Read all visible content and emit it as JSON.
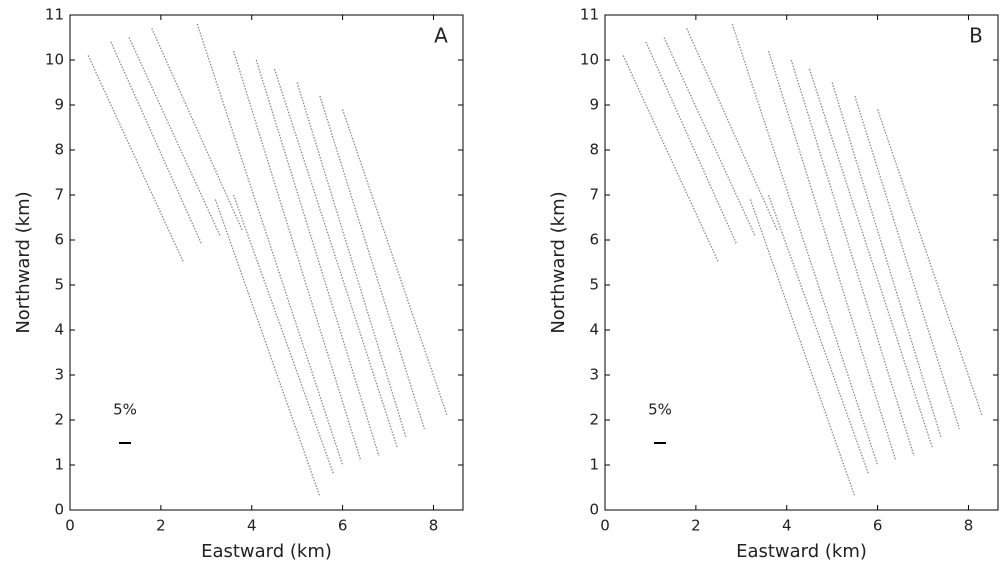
{
  "chart_data": [
    {
      "type": "line",
      "title": "A",
      "xlabel": "Eastward (km)",
      "ylabel": "Northward (km)",
      "annotation": "5%",
      "xlim": [
        0,
        8.65
      ],
      "ylim": [
        0,
        11
      ],
      "xticks": [
        0,
        2,
        4,
        6,
        8
      ],
      "yticks": [
        0,
        1,
        2,
        3,
        4,
        5,
        6,
        7,
        8,
        9,
        10,
        11
      ],
      "color": "#8a8a8a",
      "series": [
        {
          "x": [
            0.4,
            2.5
          ],
          "values": [
            10.1,
            5.5
          ]
        },
        {
          "x": [
            0.9,
            2.9
          ],
          "values": [
            10.4,
            5.9
          ]
        },
        {
          "x": [
            1.3,
            3.3
          ],
          "values": [
            10.5,
            6.1
          ]
        },
        {
          "x": [
            1.8,
            3.8
          ],
          "values": [
            10.7,
            6.2
          ]
        },
        {
          "x": [
            3.2,
            5.5
          ],
          "values": [
            6.9,
            0.3
          ]
        },
        {
          "x": [
            3.6,
            5.8
          ],
          "values": [
            7.0,
            0.8
          ]
        },
        {
          "x": [
            2.8,
            6.0
          ],
          "values": [
            10.8,
            1.0
          ]
        },
        {
          "x": [
            3.6,
            6.4
          ],
          "values": [
            10.2,
            1.1
          ]
        },
        {
          "x": [
            4.1,
            6.8
          ],
          "values": [
            10.0,
            1.2
          ]
        },
        {
          "x": [
            4.5,
            7.2
          ],
          "values": [
            9.8,
            1.4
          ]
        },
        {
          "x": [
            5.0,
            7.4
          ],
          "values": [
            9.5,
            1.6
          ]
        },
        {
          "x": [
            5.5,
            7.8
          ],
          "values": [
            9.2,
            1.8
          ]
        },
        {
          "x": [
            6.0,
            8.3
          ],
          "values": [
            8.9,
            2.1
          ]
        }
      ]
    },
    {
      "type": "line",
      "title": "B",
      "xlabel": "Eastward (km)",
      "ylabel": "Northward (km)",
      "annotation": "5%",
      "xlim": [
        0,
        8.65
      ],
      "ylim": [
        0,
        11
      ],
      "xticks": [
        0,
        2,
        4,
        6,
        8
      ],
      "yticks": [
        0,
        1,
        2,
        3,
        4,
        5,
        6,
        7,
        8,
        9,
        10,
        11
      ],
      "color": "#8a8a8a",
      "series": [
        {
          "x": [
            0.4,
            2.5
          ],
          "values": [
            10.1,
            5.5
          ]
        },
        {
          "x": [
            0.9,
            2.9
          ],
          "values": [
            10.4,
            5.9
          ]
        },
        {
          "x": [
            1.3,
            3.3
          ],
          "values": [
            10.5,
            6.1
          ]
        },
        {
          "x": [
            1.8,
            3.8
          ],
          "values": [
            10.7,
            6.2
          ]
        },
        {
          "x": [
            3.2,
            5.5
          ],
          "values": [
            6.9,
            0.3
          ]
        },
        {
          "x": [
            3.6,
            5.8
          ],
          "values": [
            7.0,
            0.8
          ]
        },
        {
          "x": [
            2.8,
            6.0
          ],
          "values": [
            10.8,
            1.0
          ]
        },
        {
          "x": [
            3.6,
            6.4
          ],
          "values": [
            10.2,
            1.1
          ]
        },
        {
          "x": [
            4.1,
            6.8
          ],
          "values": [
            10.0,
            1.2
          ]
        },
        {
          "x": [
            4.5,
            7.2
          ],
          "values": [
            9.8,
            1.4
          ]
        },
        {
          "x": [
            5.0,
            7.4
          ],
          "values": [
            9.5,
            1.6
          ]
        },
        {
          "x": [
            5.5,
            7.8
          ],
          "values": [
            9.2,
            1.8
          ]
        },
        {
          "x": [
            6.0,
            8.3
          ],
          "values": [
            8.9,
            2.1
          ]
        }
      ]
    }
  ]
}
